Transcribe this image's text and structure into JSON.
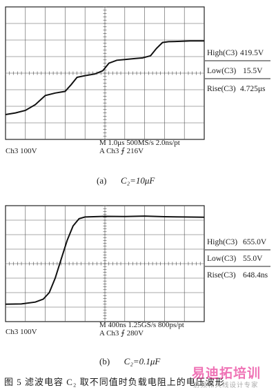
{
  "chart_data": [
    {
      "type": "line",
      "panel_label": "(a)",
      "param": "C₂=10μF",
      "measurements": [
        {
          "label": "High(C3)",
          "value": "419.5V"
        },
        {
          "label": "Low(C3)",
          "value": "15.5V"
        },
        {
          "label": "Rise(C3)",
          "value": "4.725μs"
        }
      ],
      "channel": "Ch3 100V",
      "timebase": "M 1.0μs 500MS/s 2.0ns/pt",
      "trigger": "A Ch3 ⨍ 216V",
      "x_div": 10,
      "y_div": 8,
      "trace": [
        [
          0,
          1.5
        ],
        [
          0.5,
          1.6
        ],
        [
          1.0,
          1.75
        ],
        [
          1.5,
          2.1
        ],
        [
          2.0,
          2.65
        ],
        [
          2.5,
          2.8
        ],
        [
          3.0,
          2.9
        ],
        [
          3.3,
          3.3
        ],
        [
          3.6,
          3.75
        ],
        [
          4.0,
          3.85
        ],
        [
          4.5,
          3.95
        ],
        [
          4.9,
          4.15
        ],
        [
          5.2,
          4.6
        ],
        [
          5.6,
          4.78
        ],
        [
          6.0,
          4.82
        ],
        [
          6.5,
          4.88
        ],
        [
          6.9,
          4.92
        ],
        [
          7.3,
          5.05
        ],
        [
          7.6,
          5.5
        ],
        [
          7.9,
          5.85
        ],
        [
          8.2,
          5.9
        ],
        [
          8.8,
          5.92
        ],
        [
          9.3,
          5.95
        ],
        [
          10.0,
          5.95
        ]
      ]
    },
    {
      "type": "line",
      "panel_label": "(b)",
      "param": "C₂=0.1μF",
      "measurements": [
        {
          "label": "High(C3)",
          "value": "655.0V"
        },
        {
          "label": "Low(C3)",
          "value": "55.0V"
        },
        {
          "label": "Rise(C3)",
          "value": "648.4ns"
        }
      ],
      "channel": "Ch3 100V",
      "timebase": "M 400ns 1.25GS/s 800ps/pt",
      "trigger": "A Ch3 ⨍ 280V",
      "x_div": 10,
      "y_div": 8,
      "trace": [
        [
          0,
          1.2
        ],
        [
          0.8,
          1.22
        ],
        [
          1.5,
          1.35
        ],
        [
          1.9,
          1.55
        ],
        [
          2.2,
          2.0
        ],
        [
          2.5,
          3.0
        ],
        [
          2.8,
          4.3
        ],
        [
          3.1,
          5.6
        ],
        [
          3.4,
          6.6
        ],
        [
          3.7,
          7.1
        ],
        [
          4.0,
          7.22
        ],
        [
          5.0,
          7.26
        ],
        [
          6.0,
          7.25
        ],
        [
          7.0,
          7.28
        ],
        [
          8.0,
          7.24
        ],
        [
          9.0,
          7.22
        ],
        [
          10.0,
          7.2
        ]
      ]
    }
  ],
  "figure_caption": "图 5    滤波电容 C₂ 取不同值时负载电阻上的电压波形",
  "watermark": {
    "main": "易迪拓培训",
    "sub": "射频和天线设计专家"
  }
}
